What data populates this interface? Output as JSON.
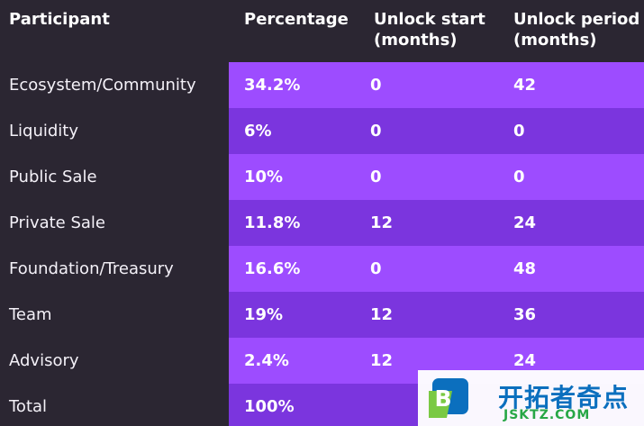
{
  "table": {
    "headers": {
      "participant": "Participant",
      "percentage": "Percentage",
      "unlock_start": "Unlock start\n(months)",
      "unlock_period": "Unlock period\n(months)"
    },
    "rows": [
      {
        "participant": "Ecosystem/Community",
        "percentage": "34.2%",
        "unlock_start": "0",
        "unlock_period": "42"
      },
      {
        "participant": "Liquidity",
        "percentage": "6%",
        "unlock_start": "0",
        "unlock_period": "0"
      },
      {
        "participant": "Public Sale",
        "percentage": "10%",
        "unlock_start": "0",
        "unlock_period": "0"
      },
      {
        "participant": "Private Sale",
        "percentage": "11.8%",
        "unlock_start": "12",
        "unlock_period": "24"
      },
      {
        "participant": "Foundation/Treasury",
        "percentage": "16.6%",
        "unlock_start": "0",
        "unlock_period": "48"
      },
      {
        "participant": "Team",
        "percentage": "19%",
        "unlock_start": "12",
        "unlock_period": "36"
      },
      {
        "participant": "Advisory",
        "percentage": "2.4%",
        "unlock_start": "12",
        "unlock_period": "24"
      },
      {
        "participant": "Total",
        "percentage": "100%",
        "unlock_start": "",
        "unlock_period": ""
      }
    ]
  },
  "watermark": {
    "title": "开拓者奇点",
    "subtitle": "JSKTZ.COM",
    "logo_letter": "B"
  },
  "colors": {
    "background": "#2b2632",
    "purple_row_a": "#7b35de",
    "purple_row_b": "#9d4cff",
    "text": "#ffffff",
    "watermark_blue": "#0b6fbe",
    "watermark_green": "#28a746"
  }
}
